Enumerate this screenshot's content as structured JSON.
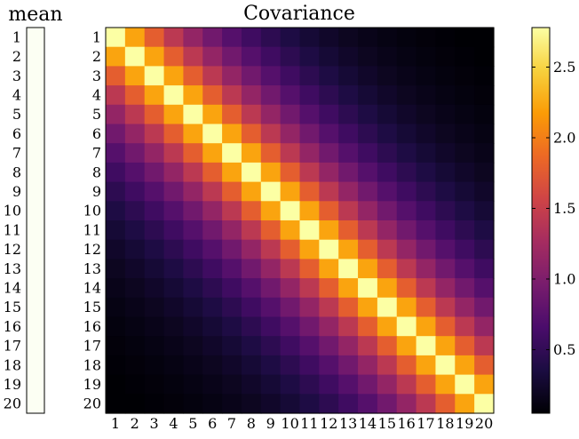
{
  "colors": {
    "mean_fill": "#fcfff3",
    "frame": "#000000",
    "colormap": [
      "#000004",
      "#1b0c41",
      "#4a0c6b",
      "#781c6d",
      "#a52c60",
      "#cf4446",
      "#ed6925",
      "#fb9b06",
      "#f7d13d",
      "#fcffa4"
    ]
  },
  "chart_data": [
    {
      "type": "heatmap",
      "title": "mean",
      "rows": [
        "1",
        "2",
        "3",
        "4",
        "5",
        "6",
        "7",
        "8",
        "9",
        "10",
        "11",
        "12",
        "13",
        "14",
        "15",
        "16",
        "17",
        "18",
        "19",
        "20"
      ],
      "columns": [],
      "values": [
        0,
        0,
        0,
        0,
        0,
        0,
        0,
        0,
        0,
        0,
        0,
        0,
        0,
        0,
        0,
        0,
        0,
        0,
        0,
        0
      ]
    },
    {
      "type": "heatmap",
      "title": "Covariance",
      "rows": [
        "1",
        "2",
        "3",
        "4",
        "5",
        "6",
        "7",
        "8",
        "9",
        "10",
        "11",
        "12",
        "13",
        "14",
        "15",
        "16",
        "17",
        "18",
        "19",
        "20"
      ],
      "columns": [
        "1",
        "2",
        "3",
        "4",
        "5",
        "6",
        "7",
        "8",
        "9",
        "10",
        "11",
        "12",
        "13",
        "14",
        "15",
        "16",
        "17",
        "18",
        "19",
        "20"
      ],
      "matrix_rule": "value(i,j) = diagonal * decay^|i-j|",
      "diagonal": 2.78,
      "decay": 0.8,
      "colorbar": {
        "range": [
          0.05,
          2.78
        ],
        "ticks": [
          "0.5",
          "1.0",
          "1.5",
          "2.0",
          "2.5"
        ],
        "tick_values": [
          0.5,
          1.0,
          1.5,
          2.0,
          2.5
        ]
      }
    }
  ]
}
